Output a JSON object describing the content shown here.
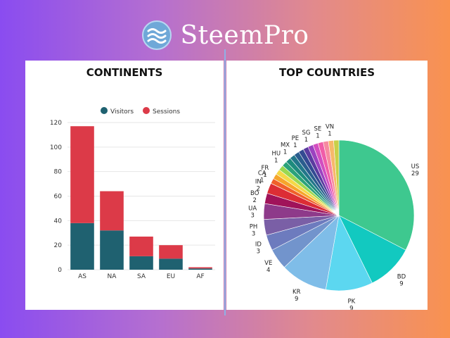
{
  "brand": {
    "name": "SteemPro"
  },
  "charts": {
    "continents_title": "CONTINENTS",
    "countries_title": "TOP COUNTRIES"
  },
  "chart_data": [
    {
      "type": "bar",
      "stacked": true,
      "title": "CONTINENTS",
      "categories": [
        "AS",
        "NA",
        "SA",
        "EU",
        "AF"
      ],
      "series": [
        {
          "name": "Visitors",
          "values": [
            38,
            32,
            11,
            9,
            1
          ],
          "color": "#1f6170"
        },
        {
          "name": "Sessions",
          "values": [
            79,
            32,
            16,
            11,
            1
          ],
          "color": "#dc3a48"
        }
      ],
      "ylim": [
        0,
        120
      ],
      "yticks": [
        0,
        20,
        40,
        60,
        80,
        100,
        120
      ],
      "grid": true,
      "legend": "top"
    },
    {
      "type": "pie",
      "title": "TOP COUNTRIES",
      "slices": [
        {
          "label": "US",
          "value": 29,
          "color": "#3ec88f"
        },
        {
          "label": "BD",
          "value": 9,
          "color": "#12c9c0"
        },
        {
          "label": "PK",
          "value": 9,
          "color": "#5cd7f0"
        },
        {
          "label": "KR",
          "value": 9,
          "color": "#7fbde8"
        },
        {
          "label": "VE",
          "value": 4,
          "color": "#7294cc"
        },
        {
          "label": "ID",
          "value": 3,
          "color": "#6d7bbe"
        },
        {
          "label": "PH",
          "value": 3,
          "color": "#7a5fa6"
        },
        {
          "label": "UA",
          "value": 3,
          "color": "#8e3a8a"
        },
        {
          "label": "BO",
          "value": 2,
          "color": "#a0135a"
        },
        {
          "label": "IN",
          "value": 2,
          "color": "#dc2d35"
        },
        {
          "label": "CA",
          "value": 1,
          "color": "#f0602a"
        },
        {
          "label": "FR",
          "value": 1,
          "color": "#f6a52c"
        },
        {
          "label": "",
          "value": 1,
          "color": "#f4d847"
        },
        {
          "label": "",
          "value": 1,
          "color": "#9bd850"
        },
        {
          "label": "HU",
          "value": 1,
          "color": "#2ba37a"
        },
        {
          "label": "",
          "value": 1,
          "color": "#1d8b7d"
        },
        {
          "label": "MX",
          "value": 1,
          "color": "#22778a"
        },
        {
          "label": "",
          "value": 1,
          "color": "#2a5d8e"
        },
        {
          "label": "PE",
          "value": 1,
          "color": "#334a92"
        },
        {
          "label": "",
          "value": 1,
          "color": "#5b3ba0"
        },
        {
          "label": "SG",
          "value": 1,
          "color": "#9b42c0"
        },
        {
          "label": "",
          "value": 1,
          "color": "#d24ec0"
        },
        {
          "label": "SE",
          "value": 1,
          "color": "#f05da8"
        },
        {
          "label": "",
          "value": 1,
          "color": "#f78aa0"
        },
        {
          "label": "VN",
          "value": 1,
          "color": "#f7b86a"
        },
        {
          "label": "",
          "value": 1,
          "color": "#c8d048"
        }
      ]
    }
  ]
}
